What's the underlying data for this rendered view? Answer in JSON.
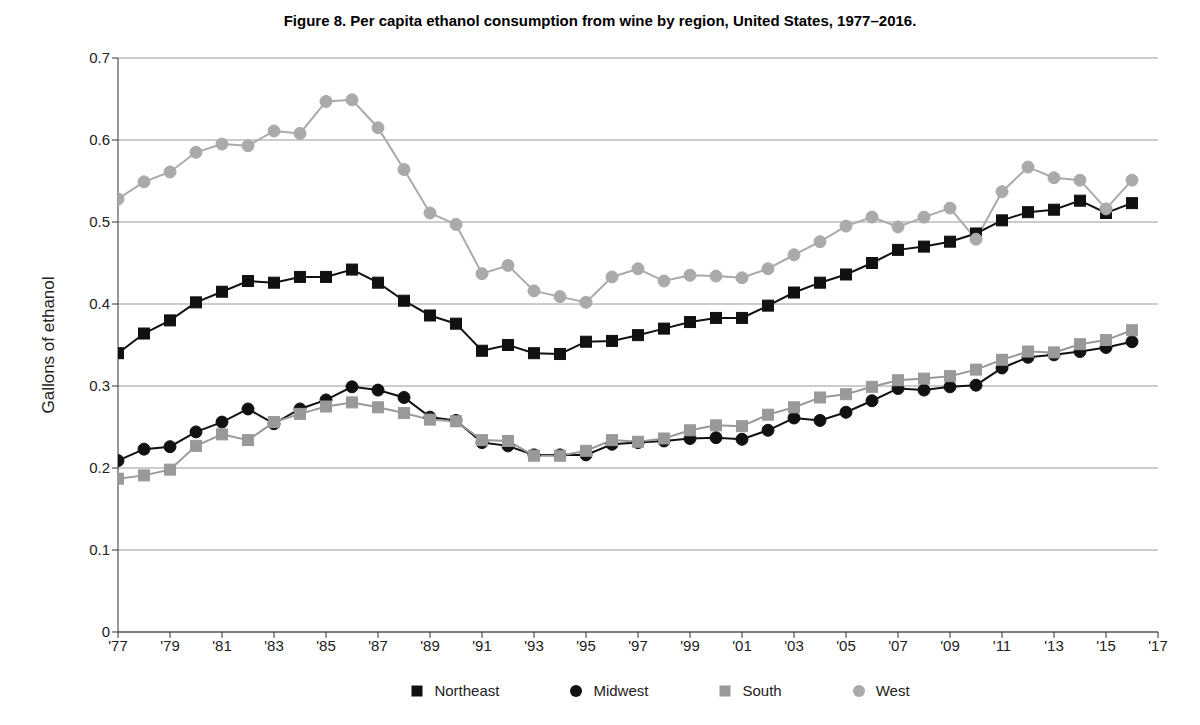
{
  "chart_data": {
    "type": "line",
    "title": "Figure 8. Per capita ethanol consumption from wine by region, United States, 1977–2016.",
    "y_label": "Gallons of ethanol",
    "x": [
      1977,
      1978,
      1979,
      1980,
      1981,
      1982,
      1983,
      1984,
      1985,
      1986,
      1987,
      1988,
      1989,
      1990,
      1991,
      1992,
      1993,
      1994,
      1995,
      1996,
      1997,
      1998,
      1999,
      2000,
      2001,
      2002,
      2003,
      2004,
      2005,
      2006,
      2007,
      2008,
      2009,
      2010,
      2011,
      2012,
      2013,
      2014,
      2015,
      2016
    ],
    "series": [
      {
        "name": "Northeast",
        "color": "#111111",
        "marker": "square",
        "values": [
          0.34,
          0.364,
          0.38,
          0.402,
          0.415,
          0.428,
          0.426,
          0.433,
          0.433,
          0.442,
          0.426,
          0.404,
          0.386,
          0.376,
          0.343,
          0.35,
          0.34,
          0.339,
          0.354,
          0.355,
          0.362,
          0.37,
          0.378,
          0.383,
          0.383,
          0.398,
          0.414,
          0.426,
          0.436,
          0.45,
          0.466,
          0.47,
          0.476,
          0.486,
          0.502,
          0.512,
          0.515,
          0.526,
          0.511,
          0.523
        ]
      },
      {
        "name": "Midwest",
        "color": "#111111",
        "marker": "circle",
        "values": [
          0.209,
          0.223,
          0.226,
          0.244,
          0.256,
          0.272,
          0.254,
          0.272,
          0.283,
          0.299,
          0.295,
          0.286,
          0.262,
          0.258,
          0.231,
          0.227,
          0.216,
          0.216,
          0.216,
          0.229,
          0.231,
          0.233,
          0.236,
          0.237,
          0.235,
          0.246,
          0.261,
          0.258,
          0.268,
          0.282,
          0.297,
          0.295,
          0.299,
          0.301,
          0.322,
          0.335,
          0.338,
          0.342,
          0.347,
          0.354
        ]
      },
      {
        "name": "South",
        "color": "#999999",
        "marker": "square",
        "values": [
          0.187,
          0.191,
          0.198,
          0.227,
          0.241,
          0.234,
          0.256,
          0.266,
          0.275,
          0.28,
          0.274,
          0.267,
          0.259,
          0.257,
          0.234,
          0.233,
          0.215,
          0.215,
          0.221,
          0.234,
          0.232,
          0.236,
          0.246,
          0.252,
          0.251,
          0.265,
          0.274,
          0.286,
          0.29,
          0.299,
          0.307,
          0.309,
          0.312,
          0.32,
          0.332,
          0.342,
          0.341,
          0.351,
          0.356,
          0.368
        ]
      },
      {
        "name": "West",
        "color": "#aaaaaa",
        "marker": "circle",
        "values": [
          0.528,
          0.549,
          0.561,
          0.585,
          0.595,
          0.593,
          0.611,
          0.608,
          0.647,
          0.649,
          0.615,
          0.564,
          0.511,
          0.497,
          0.437,
          0.447,
          0.416,
          0.409,
          0.402,
          0.433,
          0.443,
          0.428,
          0.435,
          0.434,
          0.432,
          0.443,
          0.46,
          0.476,
          0.495,
          0.506,
          0.494,
          0.506,
          0.517,
          0.479,
          0.537,
          0.567,
          0.554,
          0.551,
          0.516,
          0.551
        ]
      }
    ],
    "xlim": [
      1977,
      2017
    ],
    "xticks": [
      {
        "value": 1977,
        "label": "'77"
      },
      {
        "value": 1979,
        "label": "'79"
      },
      {
        "value": 1981,
        "label": "'81"
      },
      {
        "value": 1983,
        "label": "'83"
      },
      {
        "value": 1985,
        "label": "'85"
      },
      {
        "value": 1987,
        "label": "'87"
      },
      {
        "value": 1989,
        "label": "'89"
      },
      {
        "value": 1991,
        "label": "'91"
      },
      {
        "value": 1993,
        "label": "'93"
      },
      {
        "value": 1995,
        "label": "'95"
      },
      {
        "value": 1997,
        "label": "'97"
      },
      {
        "value": 1999,
        "label": "'99"
      },
      {
        "value": 2001,
        "label": "'01"
      },
      {
        "value": 2003,
        "label": "'03"
      },
      {
        "value": 2005,
        "label": "'05"
      },
      {
        "value": 2007,
        "label": "'07"
      },
      {
        "value": 2009,
        "label": "'09"
      },
      {
        "value": 2011,
        "label": "'11"
      },
      {
        "value": 2013,
        "label": "'13"
      },
      {
        "value": 2015,
        "label": "'15"
      },
      {
        "value": 2017,
        "label": "'17"
      }
    ],
    "ylim": [
      0,
      0.7
    ],
    "yticks": [
      0,
      0.1,
      0.2,
      0.3,
      0.4,
      0.5,
      0.6,
      0.7
    ],
    "grid": true,
    "legend": "bottom"
  }
}
